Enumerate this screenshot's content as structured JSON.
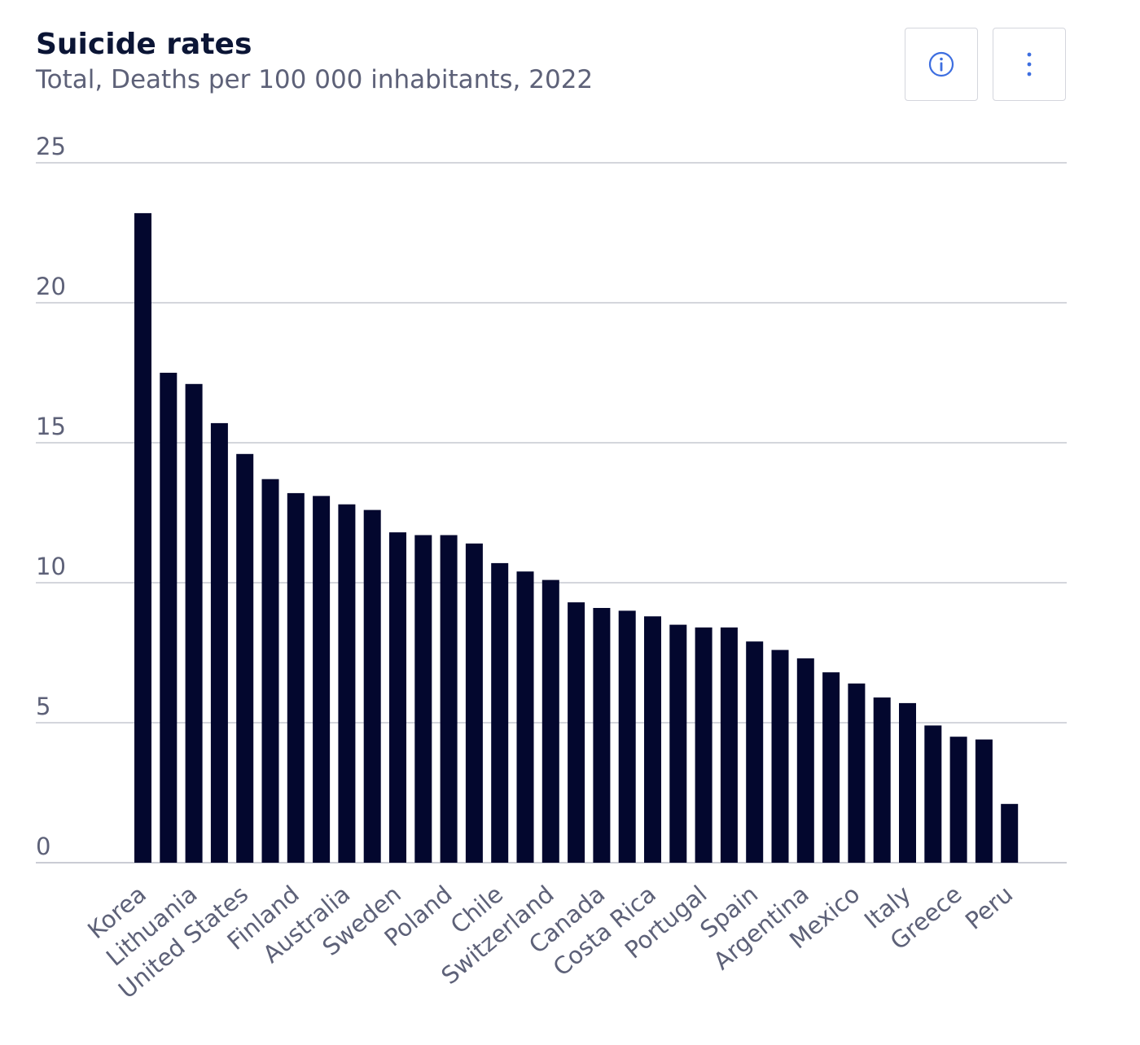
{
  "header": {
    "title": "Suicide rates",
    "subtitle": "Total, Deaths per 100 000 inhabitants, 2022"
  },
  "toolbar": {
    "info_icon": "info-icon",
    "menu_icon": "more-vertical-icon",
    "accent_color": "#3d6ee0"
  },
  "chart_data": {
    "type": "bar",
    "title": "Suicide rates",
    "subtitle": "Total, Deaths per 100 000 inhabitants, 2022",
    "xlabel": "",
    "ylabel": "",
    "ylim": [
      0,
      25
    ],
    "yticks": [
      0,
      5,
      10,
      15,
      20,
      25
    ],
    "grid": true,
    "legend": "none",
    "bar_color": "#03072e",
    "categories": [
      "Korea",
      "",
      "Lithuania",
      "",
      "United States",
      "",
      "Finland",
      "",
      "Australia",
      "",
      "Sweden",
      "",
      "Poland",
      "",
      "Chile",
      "",
      "Switzerland",
      "",
      "Canada",
      "",
      "Costa Rica",
      "",
      "Portugal",
      "",
      "Spain",
      "",
      "Argentina",
      "",
      "Mexico",
      "",
      "Italy",
      "",
      "Greece",
      "",
      "Peru"
    ],
    "values": [
      23.2,
      17.5,
      17.1,
      15.7,
      14.6,
      13.7,
      13.2,
      13.1,
      12.8,
      12.6,
      11.8,
      11.7,
      11.7,
      11.4,
      10.7,
      10.4,
      10.1,
      9.3,
      9.1,
      9.0,
      8.8,
      8.5,
      8.4,
      8.4,
      7.9,
      7.6,
      7.3,
      6.8,
      6.4,
      5.9,
      5.7,
      4.9,
      4.5,
      4.4,
      2.1
    ]
  }
}
